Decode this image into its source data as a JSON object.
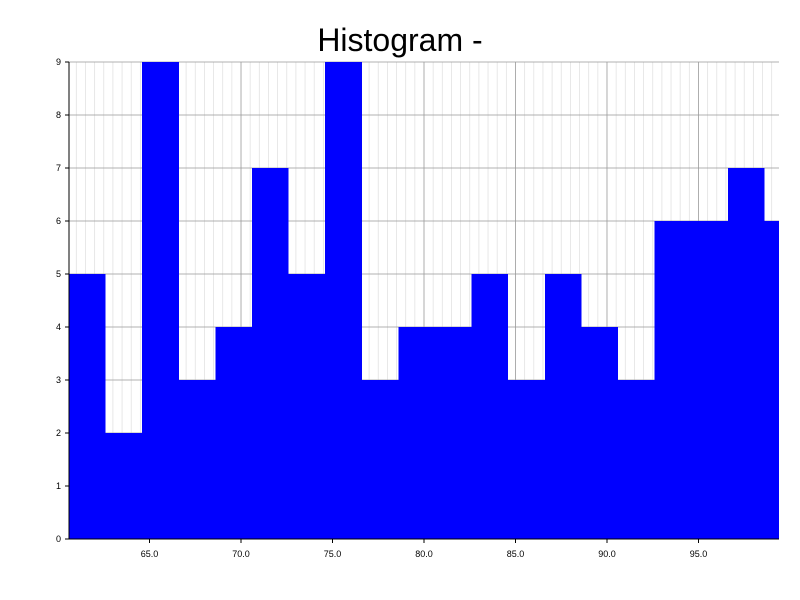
{
  "chart_data": {
    "type": "bar",
    "title": "Histogram -",
    "xlabel": "",
    "ylabel": "",
    "bin_width": 2,
    "bins": [
      {
        "start": 60.6,
        "end": 62.6,
        "count": 5
      },
      {
        "start": 62.6,
        "end": 64.6,
        "count": 2
      },
      {
        "start": 64.6,
        "end": 66.6,
        "count": 9
      },
      {
        "start": 66.6,
        "end": 68.6,
        "count": 3
      },
      {
        "start": 68.6,
        "end": 70.6,
        "count": 4
      },
      {
        "start": 70.6,
        "end": 72.6,
        "count": 7
      },
      {
        "start": 72.6,
        "end": 74.6,
        "count": 5
      },
      {
        "start": 74.6,
        "end": 76.6,
        "count": 9
      },
      {
        "start": 76.6,
        "end": 78.6,
        "count": 3
      },
      {
        "start": 78.6,
        "end": 80.6,
        "count": 4
      },
      {
        "start": 80.6,
        "end": 82.6,
        "count": 4
      },
      {
        "start": 82.6,
        "end": 84.6,
        "count": 5
      },
      {
        "start": 84.6,
        "end": 86.6,
        "count": 3
      },
      {
        "start": 86.6,
        "end": 88.6,
        "count": 5
      },
      {
        "start": 88.6,
        "end": 90.6,
        "count": 4
      },
      {
        "start": 90.6,
        "end": 92.6,
        "count": 3
      },
      {
        "start": 92.6,
        "end": 94.6,
        "count": 6
      },
      {
        "start": 94.6,
        "end": 96.6,
        "count": 6
      },
      {
        "start": 96.6,
        "end": 98.6,
        "count": 7
      },
      {
        "start": 98.6,
        "end": 100.6,
        "count": 6
      }
    ],
    "xlim": [
      60.6,
      99.4
    ],
    "ylim": [
      0,
      9
    ],
    "x_ticks": [
      "65.0",
      "70.0",
      "75.0",
      "80.0",
      "85.0",
      "90.0",
      "95.0"
    ],
    "y_ticks": [
      "0",
      "1",
      "2",
      "3",
      "4",
      "5",
      "6",
      "7",
      "8",
      "9"
    ],
    "grid": true,
    "colors": {
      "bar": "#0000ff",
      "major_grid": "#999999",
      "minor_grid": "#e2e2e2",
      "axis": "#000000"
    }
  }
}
